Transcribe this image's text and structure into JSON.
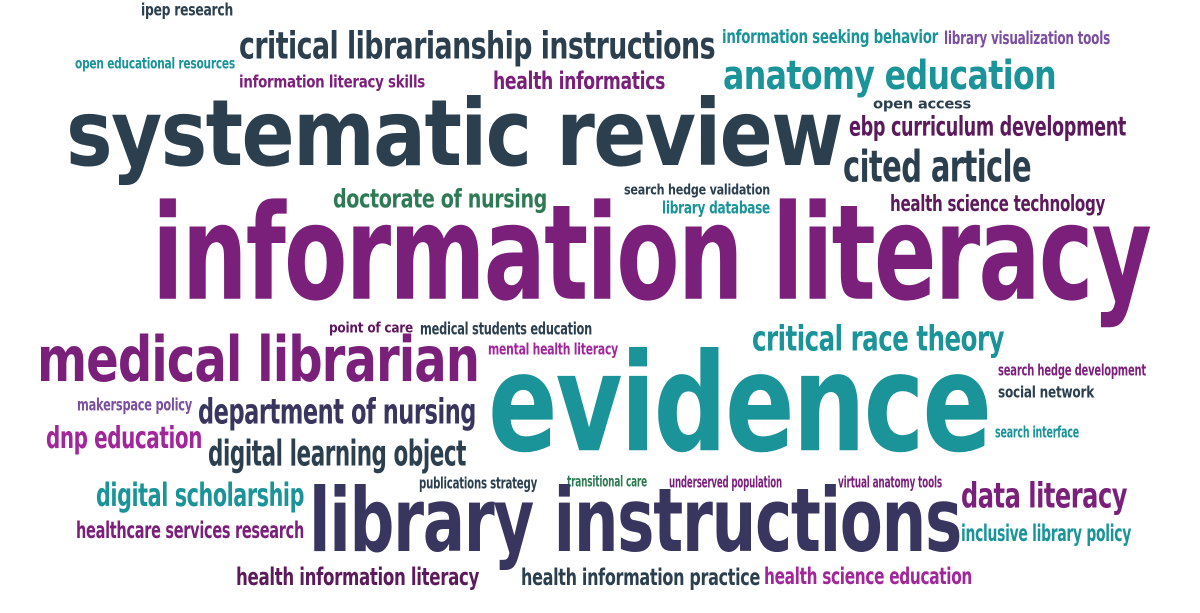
{
  "palette": {
    "navy": "#2b3f4e",
    "purple": "#7a1f7a",
    "teal": "#1a9399",
    "slate": "#38355f",
    "green": "#2d7a55",
    "violet": "#7a4fa0"
  },
  "words": [
    {
      "text": "ipep research",
      "color": "#2b3f4e"
    },
    {
      "text": "open educational resources",
      "color": "#1a9399"
    },
    {
      "text": "critical librarianship instructions",
      "color": "#2b3f4e"
    },
    {
      "text": "information seeking behavior",
      "color": "#1a9399"
    },
    {
      "text": "library visualization tools",
      "color": "#7a4fa0"
    },
    {
      "text": "information literacy skills",
      "color": "#7a1f7a"
    },
    {
      "text": "health informatics",
      "color": "#7a1f7a"
    },
    {
      "text": "anatomy education",
      "color": "#1a9399"
    },
    {
      "text": "open access",
      "color": "#2b3f4e"
    },
    {
      "text": "systematic review",
      "color": "#2b3f4e"
    },
    {
      "text": "ebp curriculum development",
      "color": "#5c1a5c"
    },
    {
      "text": "cited article",
      "color": "#2b3f4e"
    },
    {
      "text": "doctorate of nursing",
      "color": "#2d7a55"
    },
    {
      "text": "search hedge validation",
      "color": "#2b3f4e"
    },
    {
      "text": "library database",
      "color": "#1a9399"
    },
    {
      "text": "health science technology",
      "color": "#5c1a5c"
    },
    {
      "text": "information literacy",
      "color": "#7a1f7a"
    },
    {
      "text": "point of care",
      "color": "#5c1a5c"
    },
    {
      "text": "medical students education",
      "color": "#2b3f4e"
    },
    {
      "text": "critical race theory",
      "color": "#1a9399"
    },
    {
      "text": "medical librarian",
      "color": "#7a1f7a"
    },
    {
      "text": "mental health literacy",
      "color": "#a0269a"
    },
    {
      "text": "search hedge development",
      "color": "#7a1f7a"
    },
    {
      "text": "social network",
      "color": "#2b3f4e"
    },
    {
      "text": "makerspace policy",
      "color": "#7a4fa0"
    },
    {
      "text": "evidence",
      "color": "#1a9399"
    },
    {
      "text": "department of nursing",
      "color": "#38355f"
    },
    {
      "text": "dnp education",
      "color": "#a0269a"
    },
    {
      "text": "search interface",
      "color": "#1a9399"
    },
    {
      "text": "digital learning object",
      "color": "#2b3f4e"
    },
    {
      "text": "publications strategy",
      "color": "#2b3f4e"
    },
    {
      "text": "transitional care",
      "color": "#2d7a55"
    },
    {
      "text": "underserved population",
      "color": "#7a1f7a"
    },
    {
      "text": "virtual anatomy tools",
      "color": "#7a1f7a"
    },
    {
      "text": "digital scholarship",
      "color": "#1a9399"
    },
    {
      "text": "library instructions",
      "color": "#38355f"
    },
    {
      "text": "data literacy",
      "color": "#7a1f7a"
    },
    {
      "text": "healthcare services research",
      "color": "#7a1f7a"
    },
    {
      "text": "inclusive library policy",
      "color": "#1a9399"
    },
    {
      "text": "health information literacy",
      "color": "#5c1a5c"
    },
    {
      "text": "health information practice",
      "color": "#2b3f4e"
    },
    {
      "text": "health science education",
      "color": "#a0269a"
    }
  ]
}
